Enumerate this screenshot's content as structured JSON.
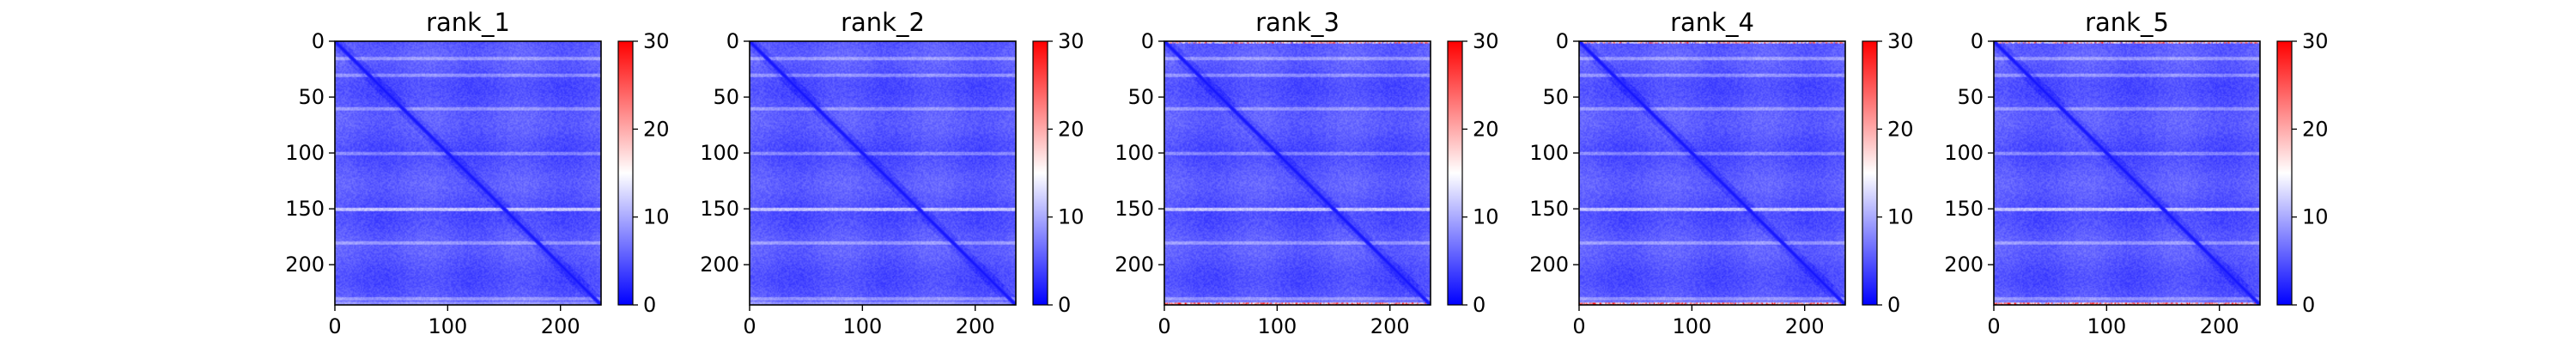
{
  "chart_data": [
    {
      "type": "heatmap",
      "title": "rank_1",
      "matrix_size": 236,
      "xlim": [
        0,
        236
      ],
      "ylim": [
        236,
        0
      ],
      "x_ticks": [
        0,
        100,
        200
      ],
      "y_ticks": [
        0,
        50,
        100,
        150,
        200
      ],
      "colorbar": {
        "min": 0,
        "max": 30,
        "ticks": [
          0,
          10,
          20,
          30
        ],
        "colormap": "bwr"
      },
      "features": {
        "base_value": 4,
        "diagonal_value": 1,
        "bright_rows": [
          150
        ],
        "banded_rows": [
          15,
          30,
          60,
          100,
          180,
          230
        ],
        "edge_hot_rows": []
      }
    },
    {
      "type": "heatmap",
      "title": "rank_2",
      "matrix_size": 236,
      "xlim": [
        0,
        236
      ],
      "ylim": [
        236,
        0
      ],
      "x_ticks": [
        0,
        100,
        200
      ],
      "y_ticks": [
        0,
        50,
        100,
        150,
        200
      ],
      "colorbar": {
        "min": 0,
        "max": 30,
        "ticks": [
          0,
          10,
          20,
          30
        ],
        "colormap": "bwr"
      },
      "features": {
        "base_value": 4,
        "diagonal_value": 1,
        "bright_rows": [
          150
        ],
        "banded_rows": [
          15,
          30,
          60,
          100,
          180,
          230
        ],
        "edge_hot_rows": []
      }
    },
    {
      "type": "heatmap",
      "title": "rank_3",
      "matrix_size": 236,
      "xlim": [
        0,
        236
      ],
      "ylim": [
        236,
        0
      ],
      "x_ticks": [
        0,
        100,
        200
      ],
      "y_ticks": [
        0,
        50,
        100,
        150,
        200
      ],
      "colorbar": {
        "min": 0,
        "max": 30,
        "ticks": [
          0,
          10,
          20,
          30
        ],
        "colormap": "bwr"
      },
      "features": {
        "base_value": 4,
        "diagonal_value": 1,
        "bright_rows": [
          150
        ],
        "banded_rows": [
          15,
          30,
          60,
          100,
          180,
          230
        ],
        "edge_hot_rows": [
          0,
          235
        ]
      }
    },
    {
      "type": "heatmap",
      "title": "rank_4",
      "matrix_size": 236,
      "xlim": [
        0,
        236
      ],
      "ylim": [
        236,
        0
      ],
      "x_ticks": [
        0,
        100,
        200
      ],
      "y_ticks": [
        0,
        50,
        100,
        150,
        200
      ],
      "colorbar": {
        "min": 0,
        "max": 30,
        "ticks": [
          0,
          10,
          20,
          30
        ],
        "colormap": "bwr"
      },
      "features": {
        "base_value": 4,
        "diagonal_value": 1,
        "bright_rows": [
          150
        ],
        "banded_rows": [
          15,
          30,
          60,
          100,
          180,
          230
        ],
        "edge_hot_rows": [
          0,
          235
        ]
      }
    },
    {
      "type": "heatmap",
      "title": "rank_5",
      "matrix_size": 236,
      "xlim": [
        0,
        236
      ],
      "ylim": [
        236,
        0
      ],
      "x_ticks": [
        0,
        100,
        200
      ],
      "y_ticks": [
        0,
        50,
        100,
        150,
        200
      ],
      "colorbar": {
        "min": 0,
        "max": 30,
        "ticks": [
          0,
          10,
          20,
          30
        ],
        "colormap": "bwr"
      },
      "features": {
        "base_value": 4,
        "diagonal_value": 1,
        "bright_rows": [
          150
        ],
        "banded_rows": [
          15,
          30,
          60,
          100,
          180,
          230
        ],
        "edge_hot_rows": [
          0,
          235
        ]
      }
    }
  ],
  "colors": {
    "cmap_low": "#0000ff",
    "cmap_mid": "#ffffff",
    "cmap_high": "#ff0000",
    "axis": "#000000"
  }
}
